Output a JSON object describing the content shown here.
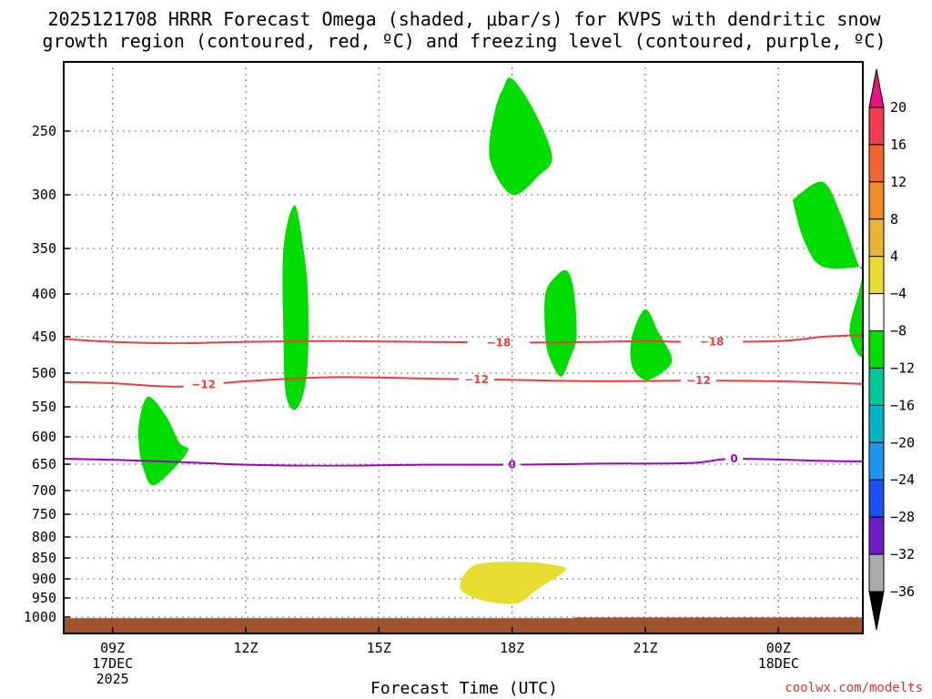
{
  "title_lines": [
    "2025121708 HRRR Forecast Omega (shaded, μbar/s) for KVPS with dendritic snow",
    "growth region (contoured, red, ºC) and freezing level (contoured, purple, ºC)"
  ],
  "credit": "coolwx.com/modelts",
  "colors": {
    "green": "#00dc00",
    "yellow": "#e6dc32",
    "ground": "#a0522d",
    "red_contour": "#f03c3c",
    "purple_contour": "#a000c8"
  },
  "chart_data": {
    "type": "contour",
    "xlabel": "Forecast Time (UTC)",
    "x_range_hours": [
      7.9,
      25.9
    ],
    "y_range_hpa": [
      200,
      1020
    ],
    "y_ticks": [
      250,
      300,
      350,
      400,
      450,
      500,
      550,
      600,
      650,
      700,
      750,
      800,
      850,
      900,
      950,
      1000
    ],
    "x_ticks": [
      {
        "hour": 9,
        "lines": [
          "09Z",
          "17DEC",
          "2025"
        ]
      },
      {
        "hour": 12,
        "lines": [
          "12Z"
        ]
      },
      {
        "hour": 15,
        "lines": [
          "15Z"
        ]
      },
      {
        "hour": 18,
        "lines": [
          "18Z"
        ]
      },
      {
        "hour": 21,
        "lines": [
          "21Z"
        ]
      },
      {
        "hour": 24,
        "lines": [
          "00Z",
          "18DEC"
        ]
      }
    ],
    "colorbar": {
      "labels": [
        "20",
        "16",
        "12",
        "8",
        "4",
        "−4",
        "−8",
        "−12",
        "−16",
        "−20",
        "−24",
        "−28",
        "−32",
        "−36"
      ],
      "bands": [
        "#f03c50",
        "#f06432",
        "#f08c28",
        "#e6b432",
        "#e6dc32",
        "#ffffff",
        "#00dc00",
        "#00c89b",
        "#00b4c8",
        "#1e96f0",
        "#1e50f0",
        "#6e1ec8",
        "#a000c8",
        "#aaaaaa"
      ],
      "top_color": "#e6147d",
      "bottom_color": "#000000"
    },
    "shaded_regions": [
      {
        "omega": -6,
        "color": "#00dc00",
        "points": [
          [
            17.6,
            235
          ],
          [
            17.8,
            213
          ],
          [
            18.0,
            205
          ],
          [
            18.5,
            233
          ],
          [
            18.9,
            270
          ],
          [
            18.6,
            285
          ],
          [
            18.0,
            300
          ],
          [
            17.5,
            272
          ]
        ]
      },
      {
        "omega": -6,
        "color": "#00dc00",
        "points": [
          [
            13.1,
            310
          ],
          [
            13.3,
            350
          ],
          [
            13.4,
            400
          ],
          [
            13.4,
            480
          ],
          [
            13.3,
            530
          ],
          [
            13.1,
            555
          ],
          [
            12.9,
            530
          ],
          [
            12.85,
            450
          ],
          [
            12.85,
            350
          ]
        ]
      },
      {
        "omega": -6,
        "color": "#00dc00",
        "points": [
          [
            9.8,
            535
          ],
          [
            10.2,
            565
          ],
          [
            10.5,
            610
          ],
          [
            10.7,
            625
          ],
          [
            10.3,
            665
          ],
          [
            9.9,
            690
          ],
          [
            9.7,
            660
          ],
          [
            9.6,
            620
          ],
          [
            9.6,
            575
          ]
        ]
      },
      {
        "omega": -6,
        "color": "#00dc00",
        "points": [
          [
            19.0,
            380
          ],
          [
            19.25,
            375
          ],
          [
            19.4,
            400
          ],
          [
            19.45,
            450
          ],
          [
            19.3,
            480
          ],
          [
            19.1,
            505
          ],
          [
            18.85,
            480
          ],
          [
            18.75,
            450
          ],
          [
            18.75,
            400
          ]
        ]
      },
      {
        "omega": -6,
        "color": "#00dc00",
        "points": [
          [
            21.0,
            418
          ],
          [
            21.3,
            445
          ],
          [
            21.6,
            480
          ],
          [
            21.4,
            498
          ],
          [
            21.0,
            510
          ],
          [
            20.7,
            490
          ],
          [
            20.7,
            450
          ]
        ]
      },
      {
        "omega": -6,
        "color": "#00dc00",
        "points": [
          [
            25.0,
            290
          ],
          [
            25.4,
            318
          ],
          [
            25.8,
            368
          ],
          [
            25.9,
            370
          ],
          [
            25.0,
            370
          ],
          [
            24.6,
            345
          ],
          [
            24.35,
            310
          ],
          [
            24.4,
            302
          ]
        ]
      },
      {
        "omega": -6,
        "color": "#00dc00",
        "points": [
          [
            25.9,
            388
          ],
          [
            25.8,
            400
          ],
          [
            25.6,
            445
          ],
          [
            25.9,
            475
          ]
        ]
      },
      {
        "omega": 6,
        "color": "#e6dc32",
        "points": [
          [
            17.1,
            870
          ],
          [
            17.6,
            860
          ],
          [
            18.4,
            860
          ],
          [
            19.0,
            868
          ],
          [
            19.2,
            880
          ],
          [
            18.6,
            925
          ],
          [
            18.2,
            960
          ],
          [
            17.9,
            965
          ],
          [
            17.4,
            958
          ],
          [
            16.9,
            935
          ],
          [
            16.85,
            905
          ]
        ]
      }
    ],
    "contours": [
      {
        "label": "-18",
        "color": "#f03c3c",
        "label_at": [
          [
            17.0,
            18.4
          ],
          [
            21.8,
            23.2
          ]
        ],
        "points": [
          [
            7.9,
            453
          ],
          [
            9.0,
            457
          ],
          [
            10.5,
            459
          ],
          [
            12.0,
            457
          ],
          [
            14.0,
            456
          ],
          [
            16.0,
            457
          ],
          [
            18.0,
            458
          ],
          [
            20.0,
            457
          ],
          [
            21.0,
            456
          ],
          [
            22.0,
            457
          ],
          [
            24.0,
            456
          ],
          [
            25.0,
            450
          ],
          [
            25.9,
            448
          ]
        ]
      },
      {
        "label": "-12",
        "color": "#f03c3c",
        "label_at": [
          [
            10.6,
            11.5
          ],
          [
            16.8,
            17.6
          ],
          [
            21.8,
            22.6
          ]
        ],
        "points": [
          [
            7.9,
            513
          ],
          [
            9.0,
            515
          ],
          [
            10.5,
            520
          ],
          [
            12.0,
            512
          ],
          [
            14.0,
            506
          ],
          [
            16.0,
            508
          ],
          [
            18.0,
            510
          ],
          [
            20.0,
            512
          ],
          [
            22.0,
            511
          ],
          [
            24.0,
            512
          ],
          [
            25.9,
            516
          ]
        ]
      },
      {
        "label": "0",
        "color": "#a000c8",
        "label_at": [
          [
            17.8,
            18.2
          ],
          [
            22.8,
            23.2
          ]
        ],
        "points": [
          [
            7.9,
            640
          ],
          [
            9.0,
            642
          ],
          [
            10.5,
            646
          ],
          [
            12.0,
            651
          ],
          [
            14.0,
            653
          ],
          [
            16.0,
            651
          ],
          [
            18.0,
            651
          ],
          [
            20.0,
            649
          ],
          [
            22.0,
            648
          ],
          [
            23.0,
            640
          ],
          [
            25.0,
            644
          ],
          [
            25.9,
            645
          ]
        ]
      }
    ],
    "ground_level_hpa": [
      {
        "x_from": 7.9,
        "x_to": 19.4,
        "p": 1003
      },
      {
        "x_from": 19.4,
        "x_to": 25.9,
        "p": 1001
      }
    ]
  }
}
